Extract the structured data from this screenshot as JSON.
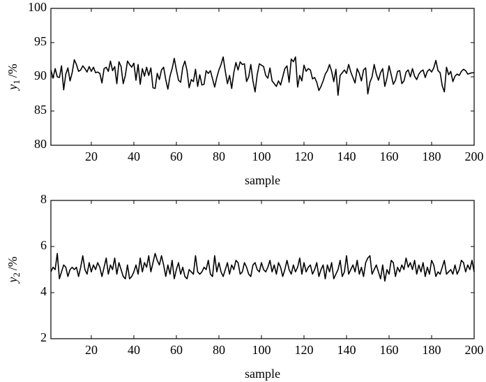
{
  "chart_data": [
    {
      "type": "line",
      "xlabel": "sample",
      "ylabel": {
        "symbol": "y",
        "subscript": "1",
        "unit": "/%"
      },
      "xlim": [
        1,
        200
      ],
      "xticks": [
        20,
        40,
        60,
        80,
        100,
        120,
        140,
        160,
        180,
        200
      ],
      "ylim": [
        80,
        100
      ],
      "yticks": [
        80,
        85,
        90,
        95,
        100
      ],
      "x": [
        1,
        2,
        3,
        4,
        5,
        6,
        7,
        8,
        9,
        10,
        11,
        12,
        13,
        14,
        15,
        16,
        17,
        18,
        19,
        20,
        21,
        22,
        23,
        24,
        25,
        26,
        27,
        28,
        29,
        30,
        31,
        32,
        33,
        34,
        35,
        36,
        37,
        38,
        39,
        40,
        41,
        42,
        43,
        44,
        45,
        46,
        47,
        48,
        49,
        50,
        51,
        52,
        53,
        54,
        55,
        56,
        57,
        58,
        59,
        60,
        61,
        62,
        63,
        64,
        65,
        66,
        67,
        68,
        69,
        70,
        71,
        72,
        73,
        74,
        75,
        76,
        77,
        78,
        79,
        80,
        81,
        82,
        83,
        84,
        85,
        86,
        87,
        88,
        89,
        90,
        91,
        92,
        93,
        94,
        95,
        96,
        97,
        98,
        99,
        100,
        101,
        102,
        103,
        104,
        105,
        106,
        107,
        108,
        109,
        110,
        111,
        112,
        113,
        114,
        115,
        116,
        117,
        118,
        119,
        120,
        121,
        122,
        123,
        124,
        125,
        126,
        127,
        128,
        129,
        130,
        131,
        132,
        133,
        134,
        135,
        136,
        137,
        138,
        139,
        140,
        141,
        142,
        143,
        144,
        145,
        146,
        147,
        148,
        149,
        150,
        151,
        152,
        153,
        154,
        155,
        156,
        157,
        158,
        159,
        160,
        161,
        162,
        163,
        164,
        165,
        166,
        167,
        168,
        169,
        170,
        171,
        172,
        173,
        174,
        175,
        176,
        177,
        178,
        179,
        180,
        181,
        182,
        183,
        184,
        185,
        186,
        187,
        188,
        189,
        190,
        191,
        192,
        193,
        194,
        195,
        196,
        197,
        198,
        199,
        200
      ],
      "color": "#000000",
      "values": [
        91.0,
        89.8,
        91.2,
        90.0,
        89.9,
        91.6,
        88.1,
        90.4,
        91.3,
        89.4,
        90.6,
        92.5,
        91.8,
        90.8,
        91.0,
        91.6,
        91.2,
        90.7,
        91.5,
        90.8,
        91.4,
        90.6,
        90.7,
        90.5,
        89.1,
        91.2,
        91.4,
        90.8,
        92.3,
        90.9,
        91.5,
        89.0,
        92.2,
        91.5,
        89.0,
        90.2,
        92.3,
        91.8,
        91.4,
        92.0,
        89.5,
        91.8,
        88.9,
        91.2,
        90.1,
        91.4,
        90.2,
        91.3,
        88.4,
        88.3,
        90.5,
        89.6,
        91.0,
        91.4,
        89.6,
        88.2,
        90.1,
        91.2,
        92.7,
        91.0,
        89.5,
        89.2,
        91.4,
        92.3,
        90.9,
        88.4,
        89.6,
        89.3,
        91.1,
        88.6,
        90.3,
        88.8,
        88.9,
        90.9,
        90.5,
        90.9,
        89.7,
        88.5,
        89.9,
        91.0,
        91.8,
        92.9,
        90.8,
        89.0,
        90.2,
        88.3,
        90.6,
        92.1,
        91.0,
        92.2,
        91.8,
        91.9,
        89.3,
        90.0,
        91.8,
        89.4,
        87.8,
        90.3,
        91.9,
        91.7,
        91.5,
        90.2,
        89.8,
        91.3,
        89.4,
        89.0,
        88.6,
        89.4,
        88.8,
        90.0,
        91.2,
        91.6,
        89.2,
        92.6,
        92.2,
        92.9,
        88.5,
        90.2,
        89.4,
        91.7,
        90.8,
        91.2,
        91.0,
        89.7,
        89.9,
        89.2,
        88.0,
        88.6,
        89.4,
        90.4,
        90.9,
        91.8,
        90.8,
        89.3,
        91.1,
        87.3,
        90.2,
        90.6,
        91.0,
        90.5,
        91.8,
        90.7,
        89.9,
        89.1,
        91.2,
        90.5,
        89.4,
        91.0,
        91.3,
        87.5,
        89.2,
        90.0,
        91.8,
        90.4,
        89.5,
        90.6,
        91.2,
        88.6,
        89.8,
        91.6,
        90.3,
        88.9,
        89.5,
        90.8,
        90.9,
        89.0,
        89.4,
        90.7,
        91.0,
        90.0,
        91.2,
        90.1,
        89.6,
        90.4,
        90.8,
        91.0,
        89.9,
        90.8,
        91.1,
        90.7,
        91.3,
        92.4,
        90.9,
        90.6,
        88.7,
        87.8,
        91.4,
        90.3,
        90.8,
        89.3,
        90.1,
        90.4,
        90.2,
        90.8,
        91.1,
        90.9,
        90.4,
        90.5,
        90.6,
        90.6
      ]
    },
    {
      "type": "line",
      "xlabel": "sample",
      "ylabel": {
        "symbol": "y",
        "subscript": "2",
        "unit": "/%"
      },
      "xlim": [
        1,
        200
      ],
      "xticks": [
        20,
        40,
        60,
        80,
        100,
        120,
        140,
        160,
        180,
        200
      ],
      "ylim": [
        2,
        8
      ],
      "yticks": [
        2,
        4,
        6,
        8
      ],
      "x": [
        1,
        2,
        3,
        4,
        5,
        6,
        7,
        8,
        9,
        10,
        11,
        12,
        13,
        14,
        15,
        16,
        17,
        18,
        19,
        20,
        21,
        22,
        23,
        24,
        25,
        26,
        27,
        28,
        29,
        30,
        31,
        32,
        33,
        34,
        35,
        36,
        37,
        38,
        39,
        40,
        41,
        42,
        43,
        44,
        45,
        46,
        47,
        48,
        49,
        50,
        51,
        52,
        53,
        54,
        55,
        56,
        57,
        58,
        59,
        60,
        61,
        62,
        63,
        64,
        65,
        66,
        67,
        68,
        69,
        70,
        71,
        72,
        73,
        74,
        75,
        76,
        77,
        78,
        79,
        80,
        81,
        82,
        83,
        84,
        85,
        86,
        87,
        88,
        89,
        90,
        91,
        92,
        93,
        94,
        95,
        96,
        97,
        98,
        99,
        100,
        101,
        102,
        103,
        104,
        105,
        106,
        107,
        108,
        109,
        110,
        111,
        112,
        113,
        114,
        115,
        116,
        117,
        118,
        119,
        120,
        121,
        122,
        123,
        124,
        125,
        126,
        127,
        128,
        129,
        130,
        131,
        132,
        133,
        134,
        135,
        136,
        137,
        138,
        139,
        140,
        141,
        142,
        143,
        144,
        145,
        146,
        147,
        148,
        149,
        150,
        151,
        152,
        153,
        154,
        155,
        156,
        157,
        158,
        159,
        160,
        161,
        162,
        163,
        164,
        165,
        166,
        167,
        168,
        169,
        170,
        171,
        172,
        173,
        174,
        175,
        176,
        177,
        178,
        179,
        180,
        181,
        182,
        183,
        184,
        185,
        186,
        187,
        188,
        189,
        190,
        191,
        192,
        193,
        194,
        195,
        196,
        197,
        198,
        199,
        200
      ],
      "color": "#000000",
      "values": [
        4.9,
        5.1,
        5.0,
        5.7,
        4.6,
        4.9,
        5.2,
        5.1,
        4.7,
        5.0,
        5.1,
        5.0,
        5.1,
        4.7,
        5.1,
        5.6,
        5.0,
        4.8,
        5.3,
        4.9,
        5.2,
        5.0,
        5.3,
        5.1,
        4.7,
        5.1,
        5.5,
        4.8,
        5.2,
        5.0,
        5.5,
        4.8,
        5.3,
        5.0,
        4.7,
        4.6,
        5.2,
        4.6,
        4.7,
        4.9,
        5.2,
        4.8,
        5.5,
        4.9,
        5.3,
        5.1,
        5.6,
        4.9,
        5.3,
        5.7,
        5.4,
        5.2,
        5.6,
        5.2,
        4.7,
        5.2,
        4.8,
        5.4,
        4.6,
        5.0,
        5.3,
        4.8,
        5.1,
        4.7,
        4.6,
        5.0,
        4.9,
        4.8,
        5.6,
        4.9,
        4.8,
        4.9,
        5.1,
        5.0,
        5.4,
        4.8,
        4.7,
        5.6,
        4.9,
        5.3,
        4.9,
        4.7,
        5.0,
        5.3,
        4.8,
        5.2,
        5.0,
        5.4,
        5.3,
        4.8,
        4.9,
        5.3,
        5.1,
        4.8,
        4.7,
        5.2,
        5.3,
        5.0,
        4.9,
        5.3,
        5.0,
        4.9,
        5.1,
        5.4,
        4.9,
        5.2,
        4.8,
        5.3,
        5.1,
        4.7,
        5.0,
        5.4,
        5.0,
        4.8,
        5.2,
        4.9,
        5.1,
        5.5,
        4.8,
        5.3,
        4.9,
        5.1,
        5.2,
        4.8,
        5.0,
        5.3,
        4.7,
        5.0,
        5.2,
        4.6,
        5.2,
        4.9,
        5.3,
        4.6,
        4.8,
        5.0,
        5.4,
        4.7,
        4.9,
        5.6,
        4.8,
        5.0,
        5.2,
        4.9,
        5.4,
        4.8,
        5.1,
        4.7,
        5.3,
        5.5,
        5.6,
        4.8,
        5.0,
        5.2,
        4.9,
        4.6,
        5.2,
        4.5,
        5.0,
        4.8,
        5.4,
        5.3,
        4.7,
        5.1,
        4.9,
        5.2,
        5.0,
        5.5,
        5.1,
        5.3,
        5.0,
        5.4,
        4.8,
        5.2,
        4.9,
        5.3,
        4.7,
        5.1,
        4.8,
        5.4,
        5.2,
        4.7,
        4.9,
        4.8,
        5.1,
        5.4,
        4.8,
        4.9,
        5.0,
        4.8,
        5.2,
        4.8,
        5.0,
        5.4,
        5.3,
        4.9,
        5.2,
        5.0,
        5.4,
        4.9
      ]
    }
  ]
}
